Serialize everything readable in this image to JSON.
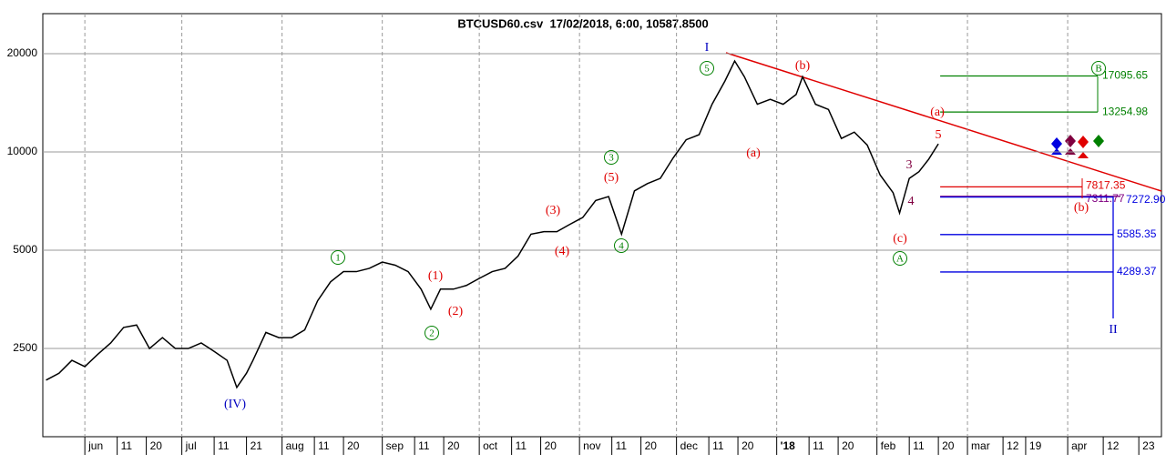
{
  "chart_data": {
    "type": "line",
    "title": "BTCUSD60.csv  17/02/2018, 6:00, 10587.8500",
    "log_scale": true,
    "grid": true,
    "xlim": [
      -13,
      333
    ],
    "ylim": [
      1342,
      26530
    ],
    "yticks": [
      2500,
      5000,
      10000,
      20000
    ],
    "xticks": [
      {
        "value": 0,
        "label": "jun"
      },
      {
        "value": 10,
        "label": "11"
      },
      {
        "value": 19,
        "label": "20"
      },
      {
        "value": 30,
        "label": "jul"
      },
      {
        "value": 40,
        "label": "11"
      },
      {
        "value": 50,
        "label": "21"
      },
      {
        "value": 61,
        "label": "aug"
      },
      {
        "value": 71,
        "label": "11"
      },
      {
        "value": 80,
        "label": "20"
      },
      {
        "value": 92,
        "label": "sep"
      },
      {
        "value": 102,
        "label": "11"
      },
      {
        "value": 111,
        "label": "20"
      },
      {
        "value": 122,
        "label": "oct"
      },
      {
        "value": 132,
        "label": "11"
      },
      {
        "value": 141,
        "label": "20"
      },
      {
        "value": 153,
        "label": "nov"
      },
      {
        "value": 163,
        "label": "11"
      },
      {
        "value": 172,
        "label": "20"
      },
      {
        "value": 183,
        "label": "dec"
      },
      {
        "value": 193,
        "label": "11"
      },
      {
        "value": 202,
        "label": "20"
      },
      {
        "value": 214,
        "label": "'18"
      },
      {
        "value": 224,
        "label": "11"
      },
      {
        "value": 233,
        "label": "20"
      },
      {
        "value": 245,
        "label": "feb"
      },
      {
        "value": 255,
        "label": "11"
      },
      {
        "value": 264,
        "label": "20"
      },
      {
        "value": 273,
        "label": "mar"
      },
      {
        "value": 284,
        "label": "12"
      },
      {
        "value": 291,
        "label": "19"
      },
      {
        "value": 304,
        "label": "apr"
      },
      {
        "value": 315,
        "label": "12"
      },
      {
        "value": 326,
        "label": "23"
      }
    ],
    "x": [
      -12,
      -8,
      -4,
      0,
      4,
      8,
      12,
      16,
      20,
      24,
      28,
      32,
      36,
      40,
      44,
      47,
      50,
      52,
      56,
      60,
      64,
      68,
      72,
      76,
      80,
      84,
      88,
      92,
      96,
      100,
      104,
      107,
      110,
      114,
      118,
      122,
      126,
      130,
      134,
      138,
      142,
      146,
      150,
      154,
      158,
      162,
      166,
      170,
      174,
      178,
      182,
      186,
      190,
      194,
      198,
      201,
      204,
      208,
      212,
      216,
      220,
      222,
      226,
      230,
      234,
      238,
      242,
      246,
      250,
      252,
      255,
      258,
      261,
      264
    ],
    "series": [
      {
        "name": "BTCUSD60",
        "color": "#000000",
        "values": [
          2000,
          2100,
          2300,
          2200,
          2400,
          2600,
          2900,
          2950,
          2500,
          2700,
          2500,
          2500,
          2600,
          2450,
          2300,
          1900,
          2100,
          2300,
          2800,
          2700,
          2700,
          2850,
          3500,
          4000,
          4300,
          4300,
          4400,
          4600,
          4500,
          4300,
          3800,
          3300,
          3800,
          3800,
          3900,
          4100,
          4300,
          4400,
          4800,
          5600,
          5700,
          5700,
          6000,
          6300,
          7100,
          7300,
          5600,
          7600,
          8000,
          8300,
          9600,
          10900,
          11300,
          14000,
          16500,
          19000,
          17000,
          14000,
          14500,
          14000,
          15000,
          17000,
          14000,
          13500,
          11000,
          11500,
          10500,
          8500,
          7500,
          6500,
          8300,
          8700,
          9500,
          10588
        ]
      }
    ],
    "levels": {
      "values": [
        17095.65,
        13254.98,
        7817.35,
        7311.77,
        7272.9,
        5585.35,
        4289.37
      ],
      "value_labels": [
        "17095.65",
        "13254.98",
        "7817.35",
        "7311.77",
        "7272.90",
        "5585.35",
        "4289.37"
      ],
      "colors": [
        "#008000",
        "#008000",
        "#e00000",
        "#800080",
        "#0000e0",
        "#0000e0",
        "#0000e0"
      ]
    },
    "annotations": [
      {
        "text": "I",
        "color": "#0000c0",
        "circled": false
      },
      {
        "text": "5",
        "color": "#008000",
        "circled": true
      },
      {
        "text": "(b)",
        "color": "#e00000",
        "circled": false
      },
      {
        "text": "(a)",
        "color": "#e00000",
        "circled": false
      },
      {
        "text": "(a)",
        "color": "#e00000",
        "circled": false
      },
      {
        "text": "5",
        "color": "#e00000",
        "circled": false
      },
      {
        "text": "3",
        "color": "#800040",
        "circled": false
      },
      {
        "text": "4",
        "color": "#800040",
        "circled": false
      },
      {
        "text": "(c)",
        "color": "#e00000",
        "circled": false
      },
      {
        "text": "A",
        "color": "#008000",
        "circled": true
      },
      {
        "text": "3",
        "color": "#008000",
        "circled": true
      },
      {
        "text": "(5)",
        "color": "#e00000",
        "circled": false
      },
      {
        "text": "4",
        "color": "#008000",
        "circled": true
      },
      {
        "text": "(3)",
        "color": "#e00000",
        "circled": false
      },
      {
        "text": "(4)",
        "color": "#e00000",
        "circled": false
      },
      {
        "text": "1",
        "color": "#008000",
        "circled": true
      },
      {
        "text": "(1)",
        "color": "#e00000",
        "circled": false
      },
      {
        "text": "2",
        "color": "#008000",
        "circled": true
      },
      {
        "text": "(2)",
        "color": "#e00000",
        "circled": false
      },
      {
        "text": "(IV)",
        "color": "#0000c0",
        "circled": false
      },
      {
        "text": "B",
        "color": "#008000",
        "circled": true
      },
      {
        "text": "(b)",
        "color": "#e00000",
        "circled": false
      },
      {
        "text": "II",
        "color": "#0000c0",
        "circled": false
      }
    ]
  }
}
